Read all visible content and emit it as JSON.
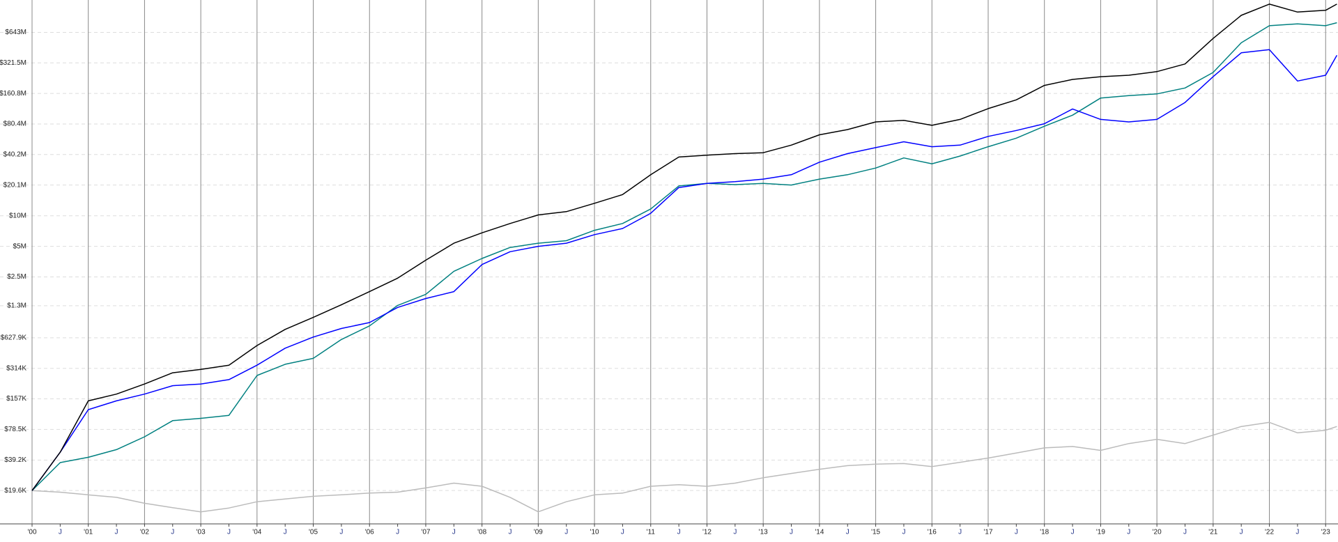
{
  "chart_data": {
    "type": "line",
    "log_scale": true,
    "grid": true,
    "xlim": [
      1999.43,
      2023.22
    ],
    "xticks": [
      {
        "value": 2000,
        "label": "'00"
      },
      {
        "value": 2000.5,
        "label": "J"
      },
      {
        "value": 2001,
        "label": "'01"
      },
      {
        "value": 2001.5,
        "label": "J"
      },
      {
        "value": 2002,
        "label": "'02"
      },
      {
        "value": 2002.5,
        "label": "J"
      },
      {
        "value": 2003,
        "label": "'03"
      },
      {
        "value": 2003.5,
        "label": "J"
      },
      {
        "value": 2004,
        "label": "'04"
      },
      {
        "value": 2004.5,
        "label": "J"
      },
      {
        "value": 2005,
        "label": "'05"
      },
      {
        "value": 2005.5,
        "label": "J"
      },
      {
        "value": 2006,
        "label": "'06"
      },
      {
        "value": 2006.5,
        "label": "J"
      },
      {
        "value": 2007,
        "label": "'07"
      },
      {
        "value": 2007.5,
        "label": "J"
      },
      {
        "value": 2008,
        "label": "'08"
      },
      {
        "value": 2008.5,
        "label": "J"
      },
      {
        "value": 2009,
        "label": "'09"
      },
      {
        "value": 2009.5,
        "label": "J"
      },
      {
        "value": 2010,
        "label": "'10"
      },
      {
        "value": 2010.5,
        "label": "J"
      },
      {
        "value": 2011,
        "label": "'11"
      },
      {
        "value": 2011.5,
        "label": "J"
      },
      {
        "value": 2012,
        "label": "'12"
      },
      {
        "value": 2012.5,
        "label": "J"
      },
      {
        "value": 2013,
        "label": "'13"
      },
      {
        "value": 2013.5,
        "label": "J"
      },
      {
        "value": 2014,
        "label": "'14"
      },
      {
        "value": 2014.5,
        "label": "J"
      },
      {
        "value": 2015,
        "label": "'15"
      },
      {
        "value": 2015.5,
        "label": "J"
      },
      {
        "value": 2016,
        "label": "'16"
      },
      {
        "value": 2016.5,
        "label": "J"
      },
      {
        "value": 2017,
        "label": "'17"
      },
      {
        "value": 2017.5,
        "label": "J"
      },
      {
        "value": 2018,
        "label": "'18"
      },
      {
        "value": 2018.5,
        "label": "J"
      },
      {
        "value": 2019,
        "label": "'19"
      },
      {
        "value": 2019.5,
        "label": "J"
      },
      {
        "value": 2020,
        "label": "'20"
      },
      {
        "value": 2020.5,
        "label": "J"
      },
      {
        "value": 2021,
        "label": "'21"
      },
      {
        "value": 2021.5,
        "label": "J"
      },
      {
        "value": 2022,
        "label": "'22"
      },
      {
        "value": 2022.5,
        "label": "J"
      },
      {
        "value": 2023,
        "label": "'23"
      }
    ],
    "ylim": [
      9200,
      1340000000
    ],
    "yticks": [
      {
        "value": 19600,
        "label": "$19.6K"
      },
      {
        "value": 39200,
        "label": "$39.2K"
      },
      {
        "value": 78500,
        "label": "$78.5K"
      },
      {
        "value": 157000,
        "label": "$157K"
      },
      {
        "value": 314000,
        "label": "$314K"
      },
      {
        "value": 627900,
        "label": "$627.9K"
      },
      {
        "value": 1300000,
        "label": "$1.3M"
      },
      {
        "value": 2500000,
        "label": "$2.5M"
      },
      {
        "value": 5000000,
        "label": "$5M"
      },
      {
        "value": 10000000,
        "label": "$10M"
      },
      {
        "value": 20100000,
        "label": "$20.1M"
      },
      {
        "value": 40200000,
        "label": "$40.2M"
      },
      {
        "value": 80400000,
        "label": "$80.4M"
      },
      {
        "value": 160800000,
        "label": "$160.8M"
      },
      {
        "value": 321500000,
        "label": "$321.5M"
      },
      {
        "value": 643000000,
        "label": "$643M"
      }
    ],
    "x": [
      2000,
      2000.5,
      2001,
      2001.5,
      2002,
      2002.5,
      2003,
      2003.5,
      2004,
      2004.5,
      2005,
      2005.5,
      2006,
      2006.5,
      2007,
      2007.5,
      2008,
      2008.5,
      2009,
      2009.5,
      2010,
      2010.5,
      2011,
      2011.5,
      2012,
      2012.5,
      2013,
      2013.5,
      2014,
      2014.5,
      2015,
      2015.5,
      2016,
      2016.5,
      2017,
      2017.5,
      2018,
      2018.5,
      2019,
      2019.5,
      2020,
      2020.5,
      2021,
      2021.5,
      2022,
      2022.5,
      2023,
      2023.2
    ],
    "series": [
      {
        "color": "#bbbbbb",
        "values": [
          19600,
          18900,
          17800,
          16800,
          14700,
          13300,
          12100,
          13200,
          15200,
          16200,
          17200,
          17800,
          18500,
          18900,
          20800,
          23200,
          21600,
          16800,
          12100,
          15200,
          17800,
          18500,
          21600,
          22400,
          21600,
          23200,
          26200,
          28900,
          31800,
          34500,
          35700,
          36200,
          33800,
          37200,
          41000,
          46000,
          51600,
          53300,
          48800,
          56900,
          62700,
          56900,
          69000,
          83900,
          92100,
          72600,
          77000,
          83900
        ]
      },
      {
        "color": "#008080",
        "values": [
          19600,
          37000,
          41700,
          49600,
          66400,
          95800,
          101000,
          108000,
          267000,
          344000,
          394000,
          604000,
          823000,
          1310000,
          1680000,
          2840000,
          3800000,
          4880000,
          5370000,
          5690000,
          7200000,
          8400000,
          11700000,
          19700000,
          20900000,
          20300000,
          20900000,
          20100000,
          23000000,
          25400000,
          29600000,
          37200000,
          32600000,
          38800000,
          48000000,
          58300000,
          76400000,
          98200000,
          145000000,
          153000000,
          159000000,
          182000000,
          259000000,
          508000000,
          748000000,
          780000000,
          748000000,
          800000000
        ]
      },
      {
        "color": "#0000ff",
        "values": [
          19600,
          46800,
          123000,
          150000,
          175000,
          212000,
          220000,
          243000,
          337000,
          496000,
          639000,
          776000,
          888000,
          1250000,
          1530000,
          1790000,
          3310000,
          4430000,
          5000000,
          5370000,
          6530000,
          7500000,
          10600000,
          19000000,
          20900000,
          21700000,
          23000000,
          25400000,
          33800000,
          41000000,
          47000000,
          53700000,
          48000000,
          49800000,
          60600000,
          69400000,
          80900000,
          113000000,
          89200000,
          84300000,
          89200000,
          131000000,
          235000000,
          404000000,
          435000000,
          213000000,
          243000000,
          382000000
        ]
      },
      {
        "color": "#000000",
        "values": [
          19600,
          46800,
          150000,
          175000,
          220000,
          284000,
          306000,
          337000,
          527000,
          760000,
          998000,
          1330000,
          1790000,
          2430000,
          3650000,
          5370000,
          6800000,
          8400000,
          10200000,
          11000000,
          13300000,
          16200000,
          25400000,
          38000000,
          39600000,
          41000000,
          41900000,
          49800000,
          62900000,
          70800000,
          84300000,
          87400000,
          78000000,
          89200000,
          114000000,
          139000000,
          193000000,
          221000000,
          235000000,
          243000000,
          264000000,
          314000000,
          560000000,
          946000000,
          1220000000,
          1020000000,
          1060000000,
          1220000000
        ]
      }
    ]
  }
}
